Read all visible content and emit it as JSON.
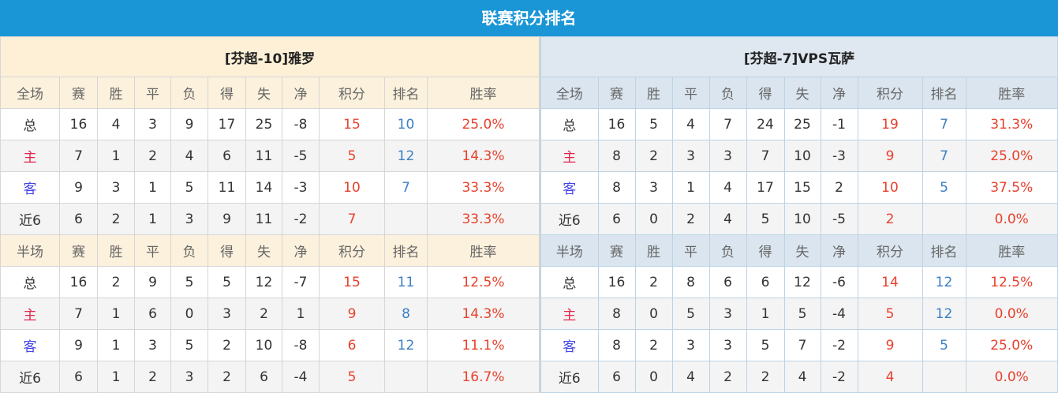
{
  "title": "联赛积分排名",
  "colors": {
    "title_bg": "#1a96d6",
    "points": "#e8402c",
    "rank": "#3b7fc4",
    "home": "#e3254a",
    "away": "#4545e6"
  },
  "columns": [
    "赛",
    "胜",
    "平",
    "负",
    "得",
    "失",
    "净",
    "积分",
    "排名",
    "胜率"
  ],
  "left": {
    "team": "[芬超-10]雅罗",
    "full": {
      "label": "全场",
      "rows": [
        [
          "总",
          "16",
          "4",
          "3",
          "9",
          "17",
          "25",
          "-8",
          "15",
          "10",
          "25.0%"
        ],
        [
          "主",
          "7",
          "1",
          "2",
          "4",
          "6",
          "11",
          "-5",
          "5",
          "12",
          "14.3%"
        ],
        [
          "客",
          "9",
          "3",
          "1",
          "5",
          "11",
          "14",
          "-3",
          "10",
          "7",
          "33.3%"
        ],
        [
          "近6",
          "6",
          "2",
          "1",
          "3",
          "9",
          "11",
          "-2",
          "7",
          "",
          "33.3%"
        ]
      ]
    },
    "half": {
      "label": "半场",
      "rows": [
        [
          "总",
          "16",
          "2",
          "9",
          "5",
          "5",
          "12",
          "-7",
          "15",
          "11",
          "12.5%"
        ],
        [
          "主",
          "7",
          "1",
          "6",
          "0",
          "3",
          "2",
          "1",
          "9",
          "8",
          "14.3%"
        ],
        [
          "客",
          "9",
          "1",
          "3",
          "5",
          "2",
          "10",
          "-8",
          "6",
          "12",
          "11.1%"
        ],
        [
          "近6",
          "6",
          "1",
          "2",
          "3",
          "2",
          "6",
          "-4",
          "5",
          "",
          "16.7%"
        ]
      ]
    }
  },
  "right": {
    "team": "[芬超-7]VPS瓦萨",
    "full": {
      "label": "全场",
      "rows": [
        [
          "总",
          "16",
          "5",
          "4",
          "7",
          "24",
          "25",
          "-1",
          "19",
          "7",
          "31.3%"
        ],
        [
          "主",
          "8",
          "2",
          "3",
          "3",
          "7",
          "10",
          "-3",
          "9",
          "7",
          "25.0%"
        ],
        [
          "客",
          "8",
          "3",
          "1",
          "4",
          "17",
          "15",
          "2",
          "10",
          "5",
          "37.5%"
        ],
        [
          "近6",
          "6",
          "0",
          "2",
          "4",
          "5",
          "10",
          "-5",
          "2",
          "",
          "0.0%"
        ]
      ]
    },
    "half": {
      "label": "半场",
      "rows": [
        [
          "总",
          "16",
          "2",
          "8",
          "6",
          "6",
          "12",
          "-6",
          "14",
          "12",
          "12.5%"
        ],
        [
          "主",
          "8",
          "0",
          "5",
          "3",
          "1",
          "5",
          "-4",
          "5",
          "12",
          "0.0%"
        ],
        [
          "客",
          "8",
          "2",
          "3",
          "3",
          "5",
          "7",
          "-2",
          "9",
          "5",
          "25.0%"
        ],
        [
          "近6",
          "6",
          "0",
          "4",
          "2",
          "2",
          "4",
          "-2",
          "4",
          "",
          "0.0%"
        ]
      ]
    }
  }
}
